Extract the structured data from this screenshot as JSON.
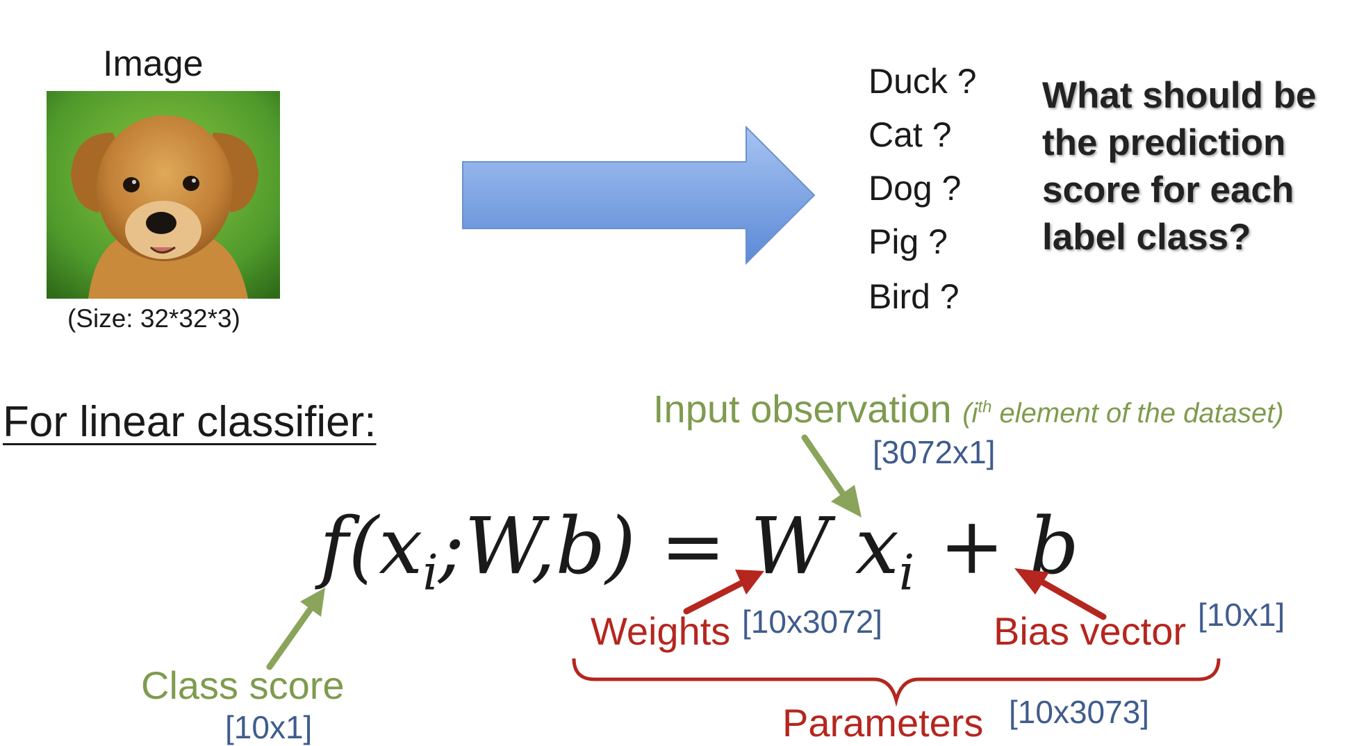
{
  "image_panel": {
    "title": "Image",
    "caption": "(Size: 32*32*3)"
  },
  "classes": [
    "Duck ?",
    "Cat ?",
    "Dog ?",
    "Pig ?",
    "Bird ?"
  ],
  "question": "What should be the prediction score for each label class?",
  "heading": "For linear classifier:",
  "formula": {
    "lhs": "f(x",
    "lhs_sub": "i",
    "lhs_rest": ";W,b) = W x",
    "rhs_sub": "i",
    "rhs_rest": " + b"
  },
  "annotations": {
    "input_label": "Input observation",
    "input_note_pre": "(i",
    "input_note_sup": "th",
    "input_note_post": " element of the dataset)",
    "input_dim": "[3072x1]",
    "weights_label": "Weights",
    "weights_dim": "[10x3072]",
    "bias_label": "Bias vector",
    "bias_dim": "[10x1]",
    "class_score_label": "Class score",
    "class_score_dim": "[10x1]",
    "params_label": "Parameters",
    "params_dim": "[10x3073]"
  },
  "colors": {
    "green": "#7f9b4e",
    "red": "#b5261e",
    "blue": "#3f5c8c",
    "arrow_fill_top": "#a7c3f2",
    "arrow_fill_bottom": "#5b8ad6",
    "image_background": "#5aa532",
    "dog_fur": "#c8893f"
  },
  "icons": {
    "main_arrow": "right-arrow-icon",
    "photo": "puppy-photo"
  }
}
